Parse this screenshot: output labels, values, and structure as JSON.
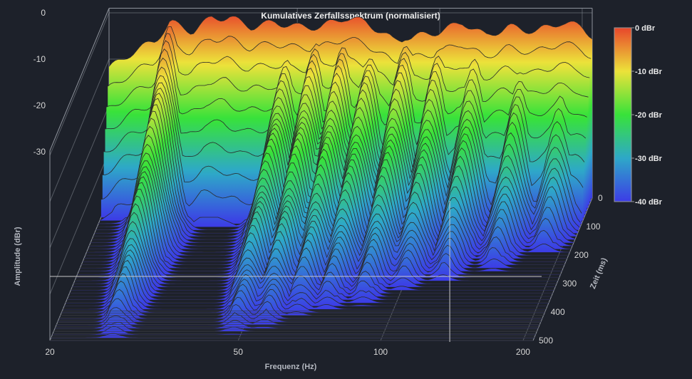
{
  "chart_data": {
    "type": "waterfall-3d",
    "title": "Kumulatives Zerfallsspektrum (normalisiert)",
    "xlabel": "Frequenz (Hz)",
    "ylabel": "Amplitude (dBr)",
    "zlabel": "Zeit (ms)",
    "x_scale": "log",
    "x_ticks": [
      "20",
      "50",
      "100",
      "200"
    ],
    "x_tick_values": [
      20,
      50,
      100,
      200
    ],
    "xlim": [
      20,
      210
    ],
    "y_ticks": [
      "0",
      "-10",
      "-20",
      "-30"
    ],
    "y_tick_values": [
      0,
      -10,
      -20,
      -30
    ],
    "ylim": [
      -40,
      0
    ],
    "z_ticks": [
      "0",
      "100",
      "200",
      "300",
      "400",
      "500"
    ],
    "z_tick_values": [
      0,
      100,
      200,
      300,
      400,
      500
    ],
    "zlim": [
      0,
      500
    ],
    "colorbar": {
      "labels": [
        "0 dBr",
        "-10 dBr",
        "-20 dBr",
        "-30 dBr",
        "-40 dBr"
      ],
      "colors": [
        "#e8462b",
        "#ece23a",
        "#38e23a",
        "#2ea8c8",
        "#3c3ce6"
      ]
    },
    "initial_response": {
      "frequencies_hz": [
        20,
        22,
        25,
        27,
        30,
        33,
        36,
        40,
        45,
        50,
        56,
        63,
        70,
        80,
        90,
        100,
        112,
        125,
        140,
        160,
        180,
        200,
        210
      ],
      "amplitude_dbr": [
        -12,
        -9,
        -6,
        -2,
        -4,
        -1,
        -1,
        -3,
        -2,
        -3,
        -3,
        -1,
        -2,
        -6,
        -5,
        -4,
        -2,
        -5,
        -3,
        -4,
        -2,
        -3,
        -5
      ]
    },
    "decaying_peaks": [
      {
        "frequency_hz": 27,
        "peak_dbr": -2,
        "decay_ms_to_floor": 500
      },
      {
        "frequency_hz": 48,
        "peak_dbr": -8,
        "decay_ms_to_floor": 480
      },
      {
        "frequency_hz": 55,
        "peak_dbr": -5,
        "decay_ms_to_floor": 460
      },
      {
        "frequency_hz": 63,
        "peak_dbr": -4,
        "decay_ms_to_floor": 420
      },
      {
        "frequency_hz": 72,
        "peak_dbr": -6,
        "decay_ms_to_floor": 400
      },
      {
        "frequency_hz": 85,
        "peak_dbr": -5,
        "decay_ms_to_floor": 380
      },
      {
        "frequency_hz": 100,
        "peak_dbr": -6,
        "decay_ms_to_floor": 330
      },
      {
        "frequency_hz": 120,
        "peak_dbr": -7,
        "decay_ms_to_floor": 300
      },
      {
        "frequency_hz": 150,
        "peak_dbr": -8,
        "decay_ms_to_floor": 260
      },
      {
        "frequency_hz": 185,
        "peak_dbr": -9,
        "decay_ms_to_floor": 200
      }
    ],
    "grid": true,
    "legend": "colorbar at right"
  }
}
